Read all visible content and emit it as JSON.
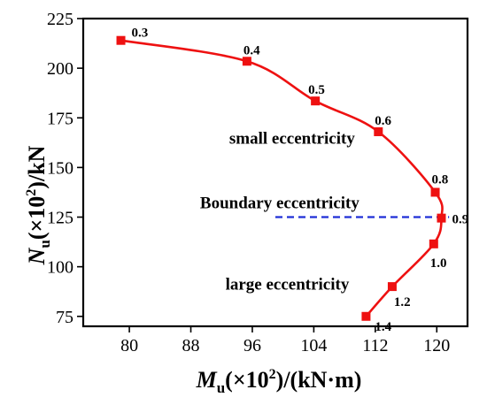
{
  "chart_data": {
    "type": "line",
    "title": "",
    "xlabel": {
      "symbol": "M",
      "subscript": "u",
      "rest_pre": "(×10",
      "sup": "2",
      "rest_post": ")/(kN·m)"
    },
    "ylabel": {
      "symbol": "N",
      "subscript": "u",
      "rest_pre": "(×10",
      "sup": "2",
      "rest_post": ")/kN"
    },
    "xlim": [
      74,
      124
    ],
    "ylim": [
      70,
      225
    ],
    "x_ticks": [
      80,
      88,
      96,
      104,
      112,
      120
    ],
    "x_tick_labels": [
      "80",
      "88",
      "96",
      "104",
      "112",
      "120"
    ],
    "y_ticks": [
      75,
      100,
      125,
      150,
      175,
      200,
      225
    ],
    "y_tick_labels": [
      "75",
      "100",
      "125",
      "150",
      "175",
      "200",
      "225"
    ],
    "grid": false,
    "series": [
      {
        "color": "#ee1111",
        "marker": "square",
        "points": [
          {
            "x": 78.9,
            "y": 214,
            "label": "0.3"
          },
          {
            "x": 95.3,
            "y": 203.5,
            "label": "0.4"
          },
          {
            "x": 104.2,
            "y": 183.5,
            "label": "0.5"
          },
          {
            "x": 112.4,
            "y": 168,
            "label": "0.6"
          },
          {
            "x": 119.8,
            "y": 137.5,
            "label": "0.8"
          },
          {
            "x": 120.6,
            "y": 124.5,
            "label": "0.9"
          },
          {
            "x": 119.6,
            "y": 111.5,
            "label": "1.0"
          },
          {
            "x": 114.2,
            "y": 90,
            "label": "1.2"
          },
          {
            "x": 110.8,
            "y": 75,
            "label": "1.4"
          }
        ]
      }
    ],
    "boundary_line": {
      "y": 125,
      "x_start": 99.0,
      "x_end": 121.6,
      "color": "#1f2fd6",
      "style": "dashed"
    },
    "annotations": [
      {
        "text": "small eccentricity",
        "x": 93,
        "y": 162
      },
      {
        "text": "Boundary eccentricity",
        "x": 89.2,
        "y": 129.5
      },
      {
        "text": "large eccentricity",
        "x": 92.5,
        "y": 88.5
      }
    ]
  }
}
